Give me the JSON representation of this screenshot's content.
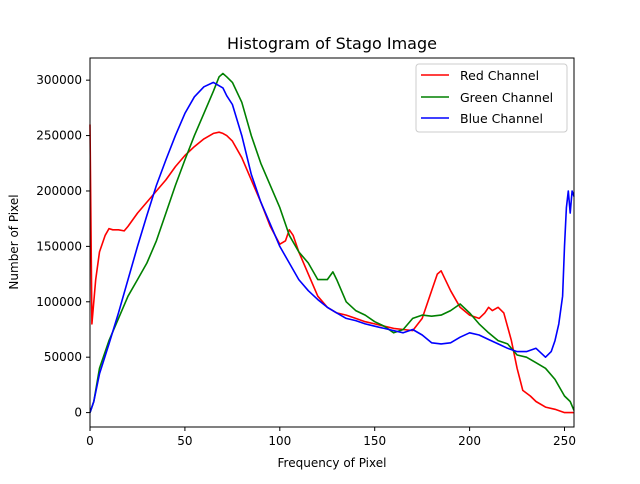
{
  "chart_data": {
    "type": "line",
    "title": "Histogram of Stago Image",
    "xlabel": "Frequency of Pixel",
    "ylabel": "Number of Pixel",
    "xlim": [
      0,
      255
    ],
    "ylim": [
      -13000,
      320000
    ],
    "xticks": [
      0,
      50,
      100,
      150,
      200,
      250
    ],
    "yticks": [
      0,
      50000,
      100000,
      150000,
      200000,
      250000,
      300000
    ],
    "grid": false,
    "legend_position": "top-right",
    "series": [
      {
        "name": "Red Channel",
        "color": "#ff0000",
        "x": [
          0,
          1,
          3,
          5,
          8,
          10,
          12,
          15,
          18,
          20,
          25,
          30,
          35,
          40,
          45,
          50,
          55,
          60,
          65,
          68,
          70,
          72,
          75,
          80,
          85,
          90,
          95,
          100,
          103,
          105,
          107,
          110,
          115,
          120,
          125,
          130,
          135,
          140,
          145,
          150,
          155,
          160,
          165,
          170,
          175,
          180,
          183,
          185,
          190,
          195,
          200,
          205,
          208,
          210,
          212,
          215,
          218,
          222,
          225,
          228,
          232,
          235,
          240,
          245,
          250,
          255
        ],
        "y": [
          260000,
          80000,
          120000,
          145000,
          160000,
          166000,
          165000,
          165000,
          164000,
          168000,
          180000,
          190000,
          200000,
          210000,
          222000,
          232000,
          240000,
          247000,
          252000,
          253000,
          252000,
          250000,
          245000,
          230000,
          210000,
          190000,
          168000,
          152000,
          155000,
          165000,
          160000,
          145000,
          125000,
          105000,
          95000,
          90000,
          88000,
          85000,
          82000,
          80000,
          78000,
          76000,
          75000,
          74000,
          85000,
          110000,
          125000,
          128000,
          110000,
          95000,
          88000,
          85000,
          90000,
          95000,
          92000,
          95000,
          90000,
          65000,
          40000,
          20000,
          15000,
          10000,
          5000,
          3000,
          0,
          0
        ]
      },
      {
        "name": "Green Channel",
        "color": "#008000",
        "x": [
          0,
          2,
          5,
          10,
          15,
          20,
          25,
          30,
          35,
          40,
          45,
          50,
          55,
          60,
          65,
          68,
          70,
          72,
          75,
          80,
          85,
          90,
          95,
          100,
          105,
          110,
          115,
          120,
          125,
          128,
          130,
          135,
          140,
          145,
          150,
          155,
          160,
          165,
          170,
          175,
          180,
          185,
          190,
          195,
          200,
          205,
          210,
          215,
          220,
          225,
          230,
          235,
          240,
          245,
          250,
          253,
          255
        ],
        "y": [
          0,
          10000,
          40000,
          65000,
          85000,
          105000,
          120000,
          135000,
          155000,
          180000,
          205000,
          228000,
          250000,
          270000,
          290000,
          303000,
          306000,
          303000,
          298000,
          280000,
          250000,
          225000,
          205000,
          185000,
          160000,
          145000,
          135000,
          120000,
          120000,
          127000,
          120000,
          100000,
          92000,
          88000,
          82000,
          78000,
          72000,
          75000,
          85000,
          88000,
          87000,
          88000,
          92000,
          98000,
          90000,
          80000,
          72000,
          65000,
          62000,
          52000,
          50000,
          45000,
          40000,
          30000,
          15000,
          10000,
          2000
        ]
      },
      {
        "name": "Blue Channel",
        "color": "#0000ff",
        "x": [
          0,
          2,
          5,
          10,
          15,
          20,
          25,
          30,
          35,
          40,
          45,
          50,
          55,
          60,
          65,
          70,
          72,
          75,
          80,
          85,
          90,
          95,
          100,
          105,
          110,
          115,
          120,
          125,
          130,
          135,
          140,
          145,
          150,
          155,
          160,
          165,
          170,
          175,
          180,
          185,
          190,
          195,
          200,
          205,
          210,
          215,
          220,
          225,
          230,
          235,
          240,
          243,
          245,
          247,
          249,
          250,
          251,
          252,
          253,
          254,
          255
        ],
        "y": [
          0,
          10000,
          35000,
          62000,
          90000,
          120000,
          150000,
          178000,
          205000,
          228000,
          250000,
          270000,
          285000,
          294000,
          298000,
          293000,
          286000,
          278000,
          250000,
          215000,
          190000,
          170000,
          150000,
          135000,
          120000,
          110000,
          102000,
          95000,
          90000,
          85000,
          83000,
          80000,
          78000,
          76000,
          74000,
          72000,
          75000,
          70000,
          63000,
          62000,
          63000,
          68000,
          72000,
          70000,
          66000,
          62000,
          58000,
          55000,
          55000,
          58000,
          50000,
          55000,
          65000,
          80000,
          105000,
          150000,
          185000,
          200000,
          180000,
          200000,
          195000
        ]
      }
    ]
  }
}
